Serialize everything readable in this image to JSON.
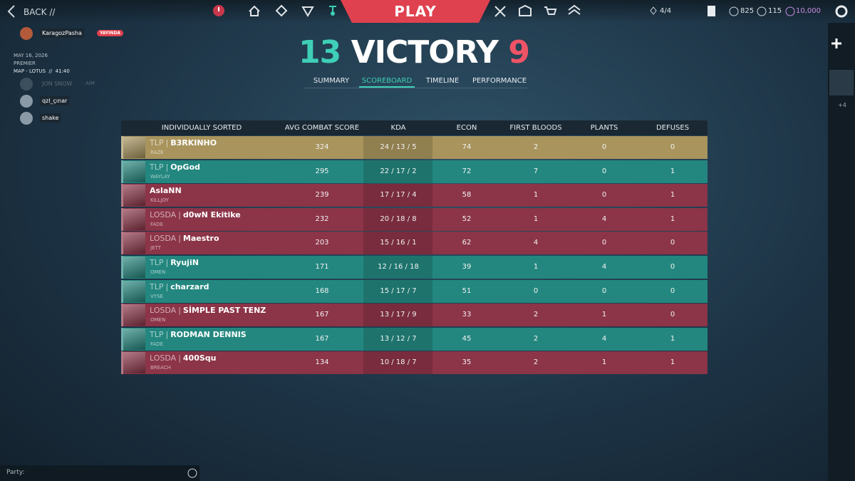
{
  "nav": {
    "back": "BACK",
    "back_suffix": "//",
    "play": "PLAY",
    "party_size": "4/4",
    "currencies": [
      "825",
      "115",
      "10,000"
    ]
  },
  "social": [
    {
      "name": "KaragozPasha",
      "badge": "YAYINDA"
    },
    {
      "name": "JON SNOW",
      "status": "AIM"
    },
    {
      "name": "qzl_çınar"
    },
    {
      "name": "shake"
    }
  ],
  "match": {
    "date": "MAY 16, 2026",
    "mode": "PREMIER",
    "map": "MAP - LOTUS",
    "separator": "//",
    "duration": "41:40"
  },
  "result": {
    "team_score": 13,
    "outcome": "VICTORY",
    "enemy_score": 9
  },
  "tabs": [
    "SUMMARY",
    "SCOREBOARD",
    "TIMELINE",
    "PERFORMANCE"
  ],
  "scoreboard": {
    "headers": [
      "INDIVIDUALLY SORTED",
      "AVG COMBAT SCORE",
      "KDA",
      "ECON",
      "FIRST BLOODS",
      "PLANTS",
      "DEFUSES"
    ],
    "separator": "|",
    "rows": [
      {
        "team": "TLP",
        "name": "B3RKINHO",
        "agent": "RAZE",
        "acs": 324,
        "kda": "24 / 13 / 5",
        "econ": 74,
        "first_bloods": 2,
        "plants": 0,
        "defuses": 0,
        "color": "#a8945c"
      },
      {
        "team": "TLP",
        "name": "OpGod",
        "agent": "WAYLAY",
        "acs": 295,
        "kda": "22 / 17 / 2",
        "econ": 72,
        "first_bloods": 7,
        "plants": 0,
        "defuses": 1,
        "color": "#23877f"
      },
      {
        "name": "AslaNN",
        "agent": "KILLJOY",
        "acs": 239,
        "kda": "17 / 17 / 4",
        "econ": 58,
        "first_bloods": 1,
        "plants": 0,
        "defuses": 1,
        "color": "#8c3448"
      },
      {
        "team": "LOSDA",
        "name": "d0wN Ekitike",
        "agent": "FADE",
        "acs": 232,
        "kda": "20 / 18 / 8",
        "econ": 52,
        "first_bloods": 1,
        "plants": 4,
        "defuses": 1,
        "color": "#8c3448"
      },
      {
        "team": "LOSDA",
        "name": "Maestro",
        "agent": "JETT",
        "acs": 203,
        "kda": "15 / 16 / 1",
        "econ": 62,
        "first_bloods": 4,
        "plants": 0,
        "defuses": 0,
        "color": "#8c3448"
      },
      {
        "team": "TLP",
        "name": "RyujiN",
        "agent": "OMEN",
        "acs": 171,
        "kda": "12 / 16 / 18",
        "econ": 39,
        "first_bloods": 1,
        "plants": 4,
        "defuses": 0,
        "color": "#23877f"
      },
      {
        "team": "TLP",
        "name": "charzard",
        "agent": "VYSE",
        "acs": 168,
        "kda": "15 / 17 / 7",
        "econ": 51,
        "first_bloods": 0,
        "plants": 0,
        "defuses": 0,
        "color": "#23877f"
      },
      {
        "team": "LOSDA",
        "name": "SİMPLE PAST TENZ",
        "agent": "OMEN",
        "acs": 167,
        "kda": "13 / 17 / 9",
        "econ": 33,
        "first_bloods": 2,
        "plants": 1,
        "defuses": 0,
        "color": "#8c3448"
      },
      {
        "team": "TLP",
        "name": "RODMAN DENNIS",
        "agent": "FADE",
        "acs": 167,
        "kda": "13 / 12 / 7",
        "econ": 45,
        "first_bloods": 2,
        "plants": 4,
        "defuses": 1,
        "color": "#23877f"
      },
      {
        "team": "LOSDA",
        "name": "400Squ",
        "agent": "BREACH",
        "acs": 134,
        "kda": "10 / 18 / 7",
        "econ": 35,
        "first_bloods": 2,
        "plants": 1,
        "defuses": 1,
        "color": "#8c3448"
      }
    ]
  },
  "party": {
    "label": "Party:"
  },
  "sidebar": {
    "extra": "+4"
  }
}
